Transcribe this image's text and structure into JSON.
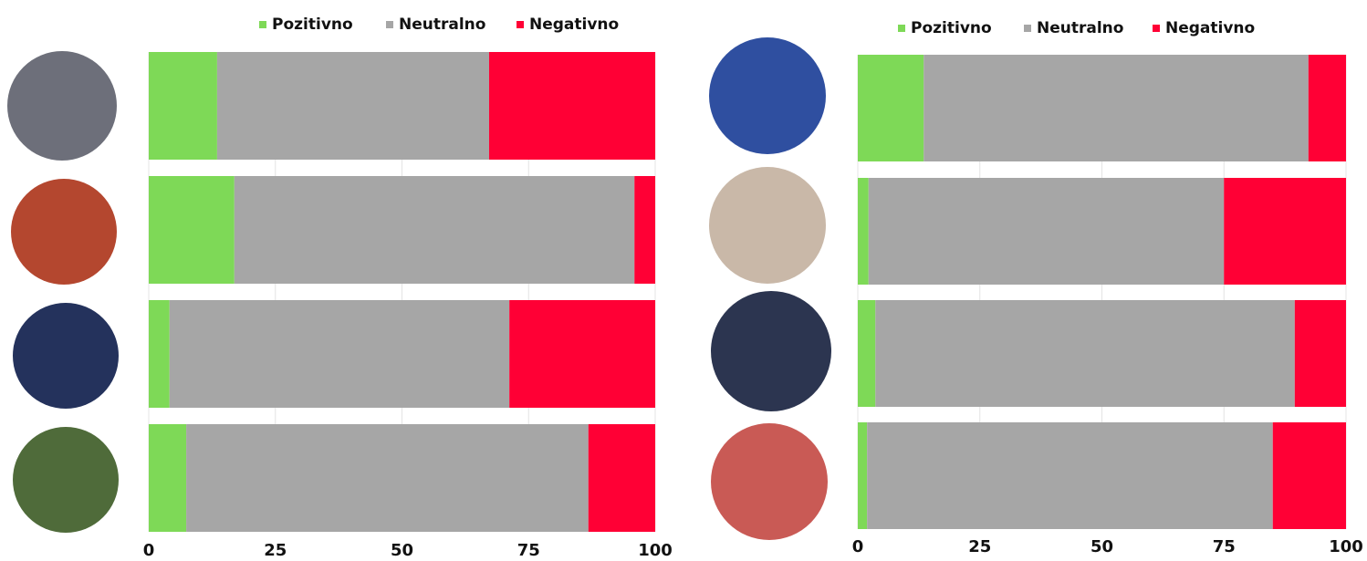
{
  "chart_data": [
    {
      "type": "stacked-bar-horizontal",
      "categories": [
        null,
        null,
        null,
        null
      ],
      "series": [
        {
          "name": "Pozitivno",
          "color": "#7ed957",
          "values": [
            13.5,
            16.9,
            4.1,
            7.4
          ]
        },
        {
          "name": "Neutralno",
          "color": "#a6a6a6",
          "values": [
            53.7,
            79.0,
            67.1,
            79.4
          ]
        },
        {
          "name": "Negativno",
          "color": "#ff0035",
          "values": [
            32.8,
            4.1,
            28.8,
            13.2
          ]
        }
      ],
      "xlim": [
        0,
        100
      ],
      "xticks": [
        0,
        25,
        50,
        75,
        100
      ],
      "grid": true,
      "legend": "top"
    },
    {
      "type": "stacked-bar-horizontal",
      "categories": [
        null,
        null,
        null,
        null
      ],
      "series": [
        {
          "name": "Pozitivno",
          "color": "#7ed957",
          "values": [
            13.5,
            2.2,
            3.6,
            1.9
          ]
        },
        {
          "name": "Neutralno",
          "color": "#a6a6a6",
          "values": [
            78.8,
            72.8,
            85.9,
            83.1
          ]
        },
        {
          "name": "Negativno",
          "color": "#ff0035",
          "values": [
            7.7,
            25.0,
            10.5,
            15.0
          ]
        }
      ],
      "xlim": [
        0,
        100
      ],
      "xticks": [
        0,
        25,
        50,
        75,
        100
      ],
      "grid": true,
      "legend": "top"
    }
  ]
}
